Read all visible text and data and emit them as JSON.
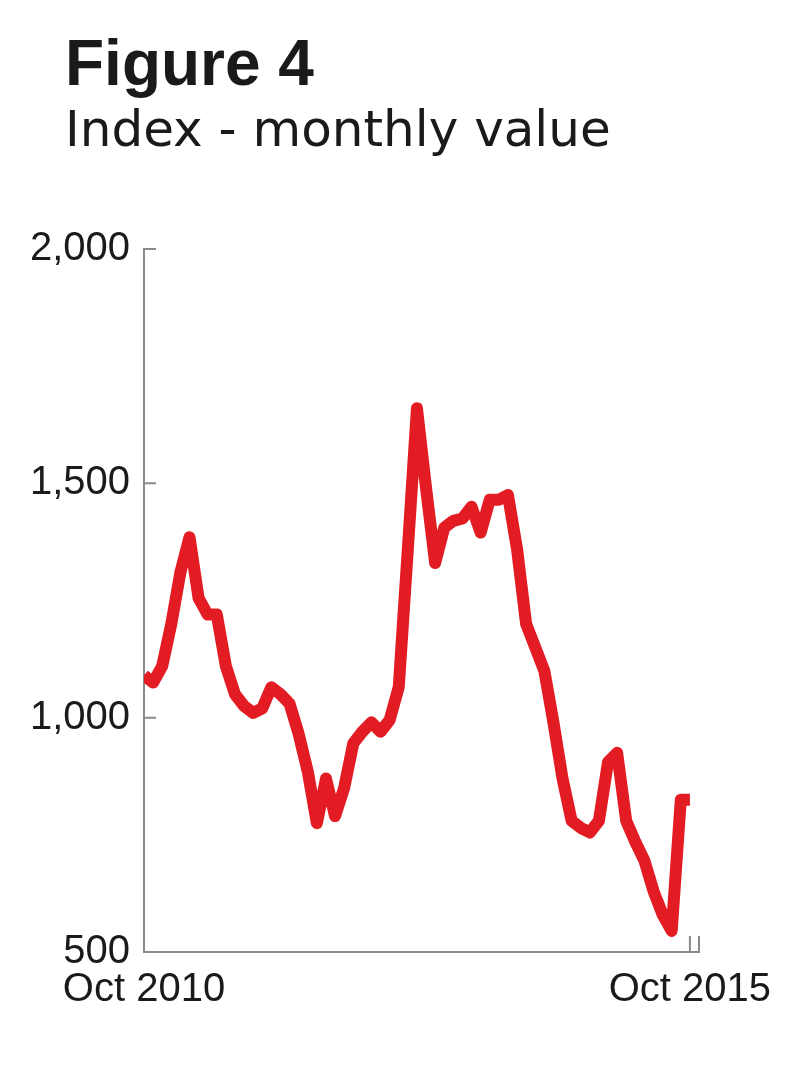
{
  "chart_data": {
    "type": "line",
    "title": "Figure 4",
    "subtitle": "Index - monthly value",
    "x": [
      "2010-10",
      "2010-11",
      "2010-12",
      "2011-01",
      "2011-02",
      "2011-03",
      "2011-04",
      "2011-05",
      "2011-06",
      "2011-07",
      "2011-08",
      "2011-09",
      "2011-10",
      "2011-11",
      "2011-12",
      "2012-01",
      "2012-02",
      "2012-03",
      "2012-04",
      "2012-05",
      "2012-06",
      "2012-07",
      "2012-08",
      "2012-09",
      "2012-10",
      "2012-11",
      "2012-12",
      "2013-01",
      "2013-02",
      "2013-03",
      "2013-04",
      "2013-05",
      "2013-06",
      "2013-07",
      "2013-08",
      "2013-09",
      "2013-10",
      "2013-11",
      "2013-12",
      "2014-01",
      "2014-02",
      "2014-03",
      "2014-04",
      "2014-05",
      "2014-06",
      "2014-07",
      "2014-08",
      "2014-09",
      "2014-10",
      "2014-11",
      "2014-12",
      "2015-01",
      "2015-02",
      "2015-03",
      "2015-04",
      "2015-05",
      "2015-06",
      "2015-07",
      "2015-08",
      "2015-09",
      "2015-10"
    ],
    "series": [
      {
        "color": "#e31b23",
        "values": [
          1090,
          1075,
          1110,
          1200,
          1310,
          1385,
          1255,
          1220,
          1220,
          1110,
          1050,
          1025,
          1010,
          1020,
          1065,
          1050,
          1030,
          965,
          885,
          775,
          870,
          790,
          850,
          945,
          970,
          990,
          970,
          995,
          1065,
          1360,
          1660,
          1490,
          1330,
          1405,
          1420,
          1425,
          1450,
          1395,
          1465,
          1465,
          1475,
          1360,
          1200,
          1150,
          1100,
          990,
          870,
          780,
          765,
          755,
          780,
          905,
          925,
          780,
          735,
          695,
          630,
          580,
          545,
          825,
          825
        ]
      }
    ],
    "xlim": [
      "2010-10",
      "2015-11"
    ],
    "xticks": [
      {
        "value": "2010-10",
        "label": "Oct 2010"
      },
      {
        "value": "2015-10",
        "label": "Oct 2015"
      },
      {
        "value": "2015-11",
        "label": null
      }
    ],
    "ylim": [
      500,
      2000
    ],
    "yticks": [
      500,
      {
        "value": 1000,
        "label": "1,000"
      },
      {
        "value": 1500,
        "label": "1,500"
      },
      {
        "value": 2000,
        "label": "2,000"
      }
    ]
  }
}
